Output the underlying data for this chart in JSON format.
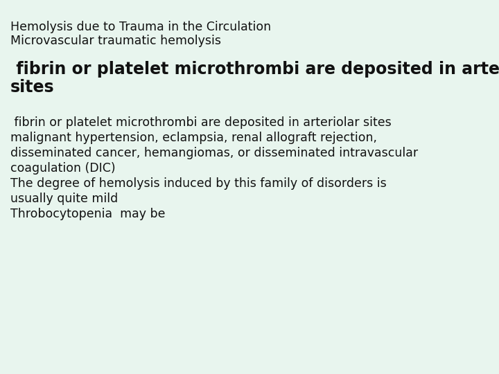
{
  "background_color": "#e8f5ee",
  "title_line1": "Hemolysis due to Trauma in the Circulation",
  "title_line2": "Microvascular traumatic hemolysis",
  "title_fontsize": 12.5,
  "header_line1": " fibrin or platelet microthrombi are deposited in arteriolar",
  "header_line2": "sites",
  "header_fontsize": 17,
  "body_lines": [
    " fibrin or platelet microthrombi are deposited in arteriolar sites",
    "malignant hypertension, eclampsia, renal allograft rejection,",
    "disseminated cancer, hemangiomas, or disseminated intravascular",
    "coagulation (DIC)",
    "The degree of hemolysis induced by this family of disorders is",
    "usually quite mild",
    "Throbocytopenia  may be"
  ],
  "body_fontsize": 12.5,
  "text_color": "#111111",
  "fig_width": 7.2,
  "fig_height": 5.4,
  "dpi": 100
}
